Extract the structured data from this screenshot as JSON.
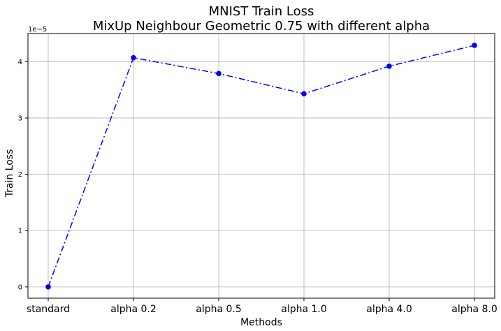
{
  "chart_data": {
    "type": "line",
    "title": "MNIST Train Loss",
    "subtitle": "MixUp Neighbour Geometric 0.75 with different alpha",
    "xlabel": "Methods",
    "ylabel": "Train Loss",
    "y_offset_label": "1e−5",
    "y_scale_factor": 1e-05,
    "categories": [
      "standard",
      "alpha 0.2",
      "alpha 0.5",
      "alpha 1.0",
      "alpha 4.0",
      "alpha 8.0"
    ],
    "series": [
      {
        "values": [
          0.0,
          4.07e-05,
          3.79e-05,
          3.43e-05,
          3.92e-05,
          4.29e-05
        ],
        "color": "#0000ff",
        "line_style": "dashdot",
        "marker": "circle"
      }
    ],
    "ylim": [
      -2e-06,
      4.5e-05
    ],
    "yticks": [
      0,
      1e-05,
      2e-05,
      3e-05,
      4e-05
    ],
    "ytick_labels": [
      "0",
      "1",
      "2",
      "3",
      "4"
    ],
    "grid": true,
    "grid_color": "#b0b0b0"
  }
}
